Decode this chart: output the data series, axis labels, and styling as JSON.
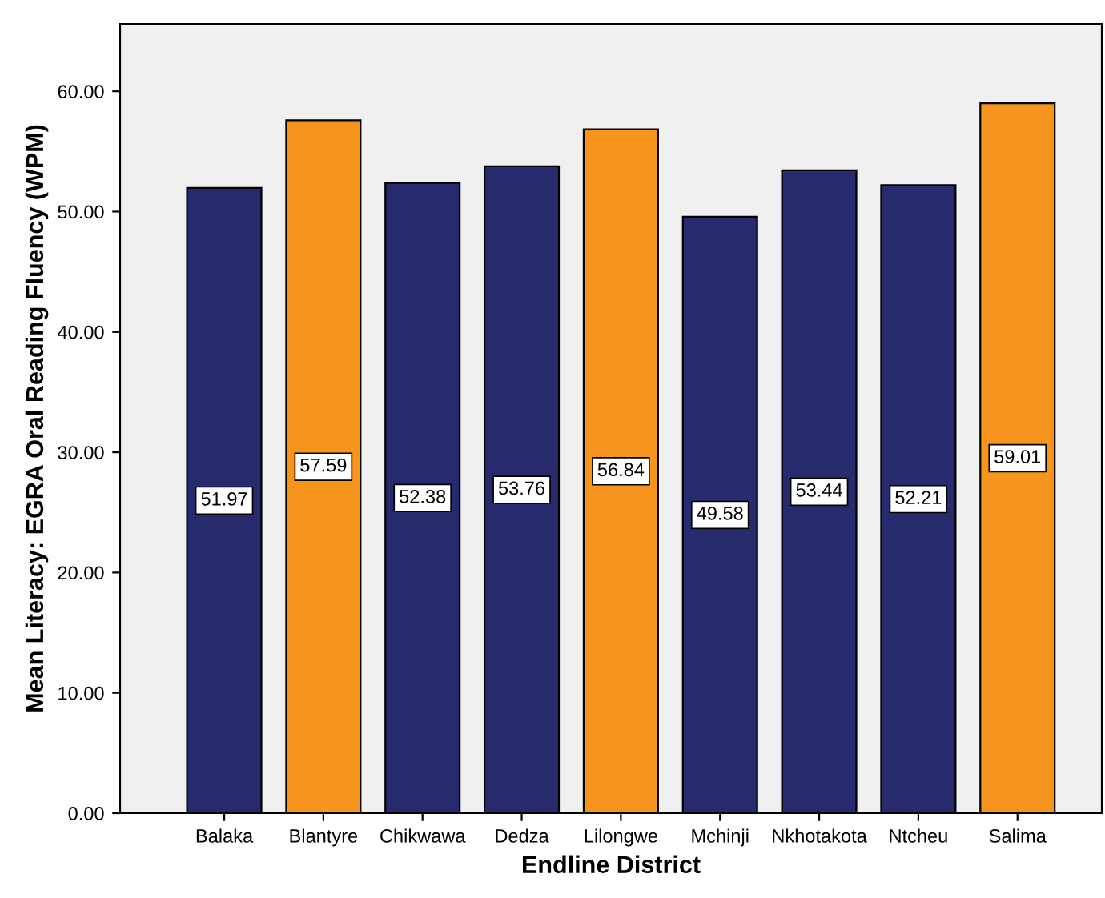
{
  "chart_data": {
    "type": "bar",
    "xlabel": "Endline District",
    "ylabel": "Mean Literacy: EGRA Oral Reading Fluency (WPM)",
    "categories": [
      "Balaka",
      "Blantyre",
      "Chikwawa",
      "Dedza",
      "Lilongwe",
      "Mchinji",
      "Nkhotakota",
      "Ntcheu",
      "Salima"
    ],
    "values": [
      51.97,
      57.59,
      52.38,
      53.76,
      56.84,
      49.58,
      53.44,
      52.21,
      59.01
    ],
    "colors": [
      "#282a6e",
      "#f7941d",
      "#282a6e",
      "#282a6e",
      "#f7941d",
      "#282a6e",
      "#282a6e",
      "#282a6e",
      "#f7941d"
    ],
    "ylim": [
      0,
      65.6
    ],
    "yticks": [
      {
        "value": 0,
        "label": "0.00"
      },
      {
        "value": 10,
        "label": "10.00"
      },
      {
        "value": 20,
        "label": "20.00"
      },
      {
        "value": 30,
        "label": "30.00"
      },
      {
        "value": 40,
        "label": "40.00"
      },
      {
        "value": 50,
        "label": "50.00"
      },
      {
        "value": 60,
        "label": "60.00"
      }
    ],
    "data_labels": true,
    "grid": false,
    "legend": false
  }
}
